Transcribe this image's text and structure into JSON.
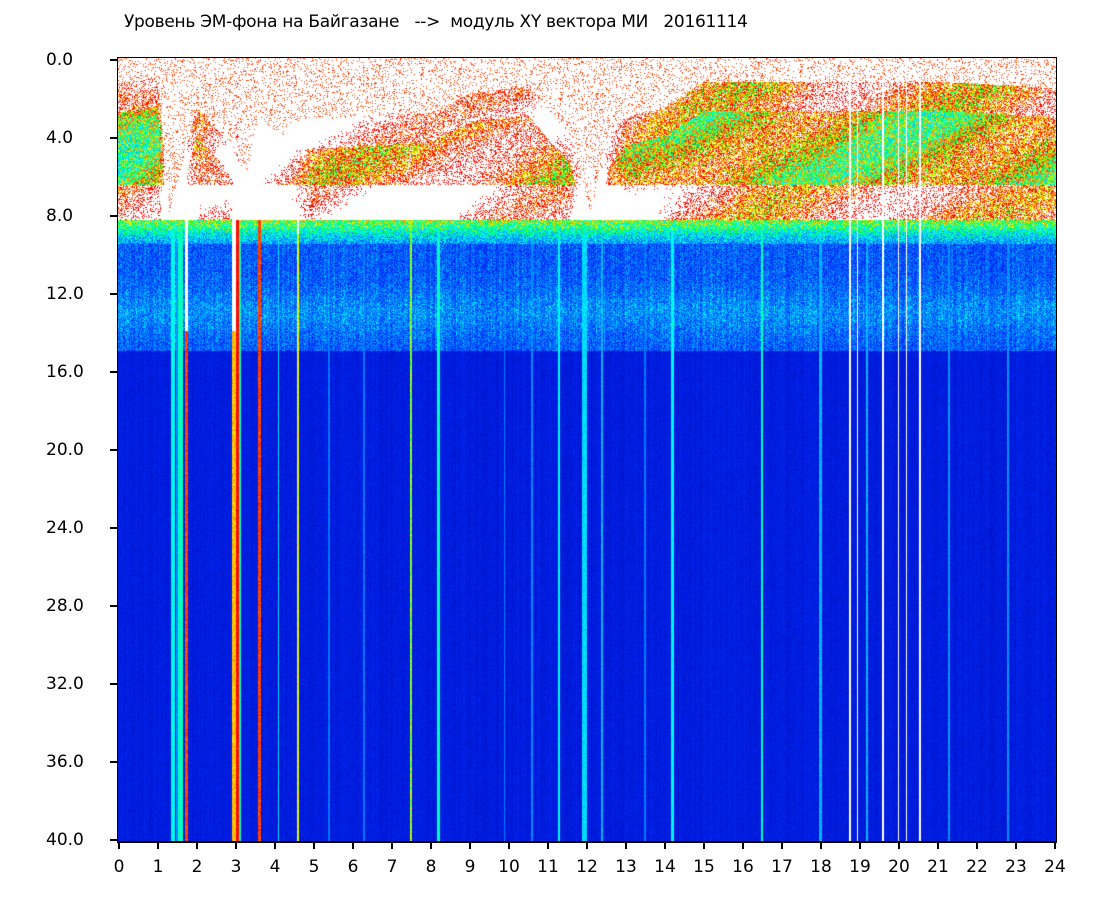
{
  "chart_data": {
    "type": "heatmap",
    "title": "Уровень ЭМ-фона на Байгазане   -->  модуль XY вектора МИ   20161114",
    "xlabel": "",
    "ylabel": "",
    "xlim": [
      0,
      24
    ],
    "ylim": [
      0,
      40
    ],
    "y_inverted": true,
    "x_ticks": [
      "0",
      "1",
      "2",
      "3",
      "4",
      "5",
      "6",
      "7",
      "8",
      "9",
      "10",
      "11",
      "12",
      "13",
      "14",
      "15",
      "16",
      "17",
      "18",
      "19",
      "20",
      "21",
      "22",
      "23",
      "24"
    ],
    "y_ticks": [
      "0.0",
      "4.0",
      "8.0",
      "12.0",
      "16.0",
      "20.0",
      "24.0",
      "28.0",
      "32.0",
      "36.0",
      "40.0"
    ],
    "colormap": [
      "#0010c8",
      "#0030ff",
      "#0090ff",
      "#00ffff",
      "#00ff40",
      "#ffff00",
      "#ff8000",
      "#ff0000",
      "#ffffff"
    ],
    "grid": false,
    "legend": "none"
  }
}
